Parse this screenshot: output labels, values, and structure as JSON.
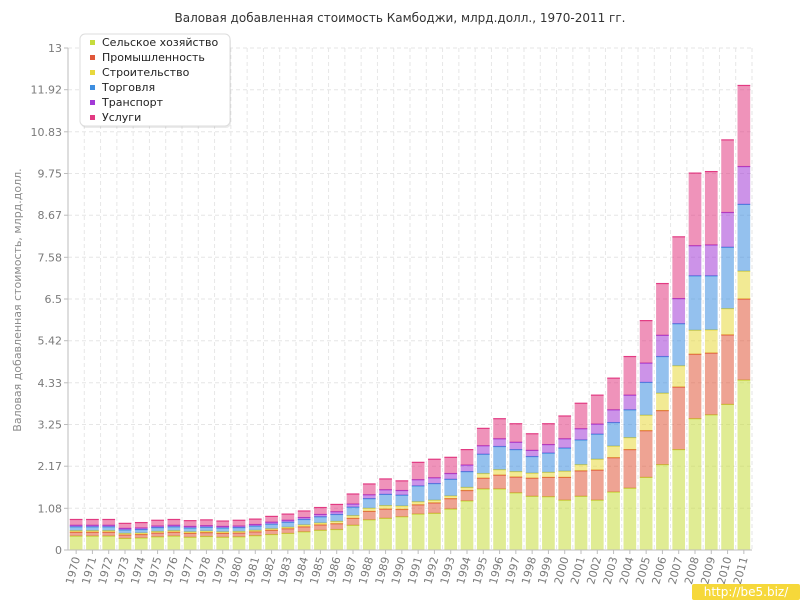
{
  "watermark": "http://be5.biz/",
  "chart_data": {
    "type": "bar",
    "stacked": true,
    "title": "Валовая добавленная стоимость Камбоджи, млрд.долл., 1970-2011 гг.",
    "xlabel": "",
    "ylabel": "Валовая добавленная стоимость, млрд.долл.",
    "ylim": [
      0,
      13
    ],
    "yticks": [
      "0",
      "1.08",
      "2.17",
      "3.25",
      "4.33",
      "5.42",
      "6.5",
      "7.58",
      "8.67",
      "9.75",
      "10.83",
      "11.92",
      "13"
    ],
    "grid": true,
    "legend_position": "top-left",
    "categories": [
      "1970",
      "1971",
      "1972",
      "1973",
      "1974",
      "1975",
      "1976",
      "1977",
      "1978",
      "1979",
      "1980",
      "1981",
      "1982",
      "1983",
      "1984",
      "1985",
      "1986",
      "1987",
      "1988",
      "1989",
      "1990",
      "1991",
      "1992",
      "1993",
      "1994",
      "1995",
      "1996",
      "1997",
      "1998",
      "1999",
      "2000",
      "2001",
      "2002",
      "2003",
      "2004",
      "2005",
      "2006",
      "2007",
      "2008",
      "2009",
      "2010",
      "2011"
    ],
    "series": [
      {
        "name": "Сельское хозяйство",
        "color": "#c6dc3c",
        "values": [
          0.36,
          0.36,
          0.36,
          0.3,
          0.31,
          0.34,
          0.36,
          0.33,
          0.35,
          0.33,
          0.34,
          0.37,
          0.4,
          0.43,
          0.47,
          0.51,
          0.53,
          0.64,
          0.78,
          0.82,
          0.86,
          0.93,
          0.95,
          1.06,
          1.27,
          1.58,
          1.58,
          1.48,
          1.39,
          1.38,
          1.29,
          1.39,
          1.29,
          1.5,
          1.6,
          1.88,
          2.21,
          2.6,
          3.4,
          3.5,
          3.77,
          4.4
        ]
      },
      {
        "name": "Промышленность",
        "color": "#e0573a",
        "values": [
          0.1,
          0.1,
          0.1,
          0.09,
          0.09,
          0.1,
          0.1,
          0.1,
          0.1,
          0.1,
          0.1,
          0.1,
          0.11,
          0.12,
          0.13,
          0.14,
          0.15,
          0.18,
          0.22,
          0.24,
          0.19,
          0.24,
          0.27,
          0.27,
          0.27,
          0.28,
          0.36,
          0.41,
          0.47,
          0.5,
          0.59,
          0.66,
          0.78,
          0.89,
          1.0,
          1.21,
          1.4,
          1.62,
          1.67,
          1.6,
          1.8,
          2.1
        ]
      },
      {
        "name": "Строительство",
        "color": "#e8d83c",
        "values": [
          0.04,
          0.04,
          0.04,
          0.04,
          0.04,
          0.04,
          0.04,
          0.04,
          0.04,
          0.04,
          0.04,
          0.04,
          0.04,
          0.04,
          0.05,
          0.05,
          0.06,
          0.07,
          0.08,
          0.09,
          0.09,
          0.08,
          0.07,
          0.07,
          0.08,
          0.12,
          0.14,
          0.14,
          0.13,
          0.13,
          0.16,
          0.16,
          0.28,
          0.3,
          0.31,
          0.4,
          0.45,
          0.55,
          0.62,
          0.6,
          0.68,
          0.72
        ]
      },
      {
        "name": "Торговля",
        "color": "#3d8ee0",
        "values": [
          0.1,
          0.1,
          0.1,
          0.09,
          0.09,
          0.1,
          0.1,
          0.1,
          0.1,
          0.1,
          0.1,
          0.11,
          0.12,
          0.13,
          0.14,
          0.16,
          0.18,
          0.22,
          0.25,
          0.29,
          0.28,
          0.41,
          0.43,
          0.43,
          0.41,
          0.5,
          0.6,
          0.57,
          0.43,
          0.5,
          0.6,
          0.64,
          0.65,
          0.61,
          0.72,
          0.85,
          0.95,
          1.09,
          1.41,
          1.4,
          1.59,
          1.73
        ]
      },
      {
        "name": "Транспорт",
        "color": "#a23ad6",
        "values": [
          0.04,
          0.04,
          0.04,
          0.04,
          0.04,
          0.04,
          0.04,
          0.04,
          0.04,
          0.04,
          0.04,
          0.04,
          0.05,
          0.05,
          0.05,
          0.06,
          0.07,
          0.08,
          0.1,
          0.12,
          0.12,
          0.16,
          0.15,
          0.15,
          0.17,
          0.22,
          0.2,
          0.19,
          0.16,
          0.22,
          0.24,
          0.29,
          0.26,
          0.33,
          0.38,
          0.5,
          0.55,
          0.65,
          0.78,
          0.8,
          0.9,
          0.98
        ]
      },
      {
        "name": "Услуги",
        "color": "#e23a82",
        "values": [
          0.15,
          0.15,
          0.15,
          0.13,
          0.14,
          0.15,
          0.15,
          0.15,
          0.15,
          0.14,
          0.15,
          0.14,
          0.15,
          0.16,
          0.17,
          0.18,
          0.19,
          0.26,
          0.28,
          0.28,
          0.25,
          0.45,
          0.48,
          0.42,
          0.4,
          0.45,
          0.52,
          0.48,
          0.43,
          0.54,
          0.59,
          0.66,
          0.75,
          0.82,
          1.0,
          1.1,
          1.34,
          1.6,
          1.88,
          1.9,
          1.88,
          2.1
        ]
      }
    ]
  }
}
